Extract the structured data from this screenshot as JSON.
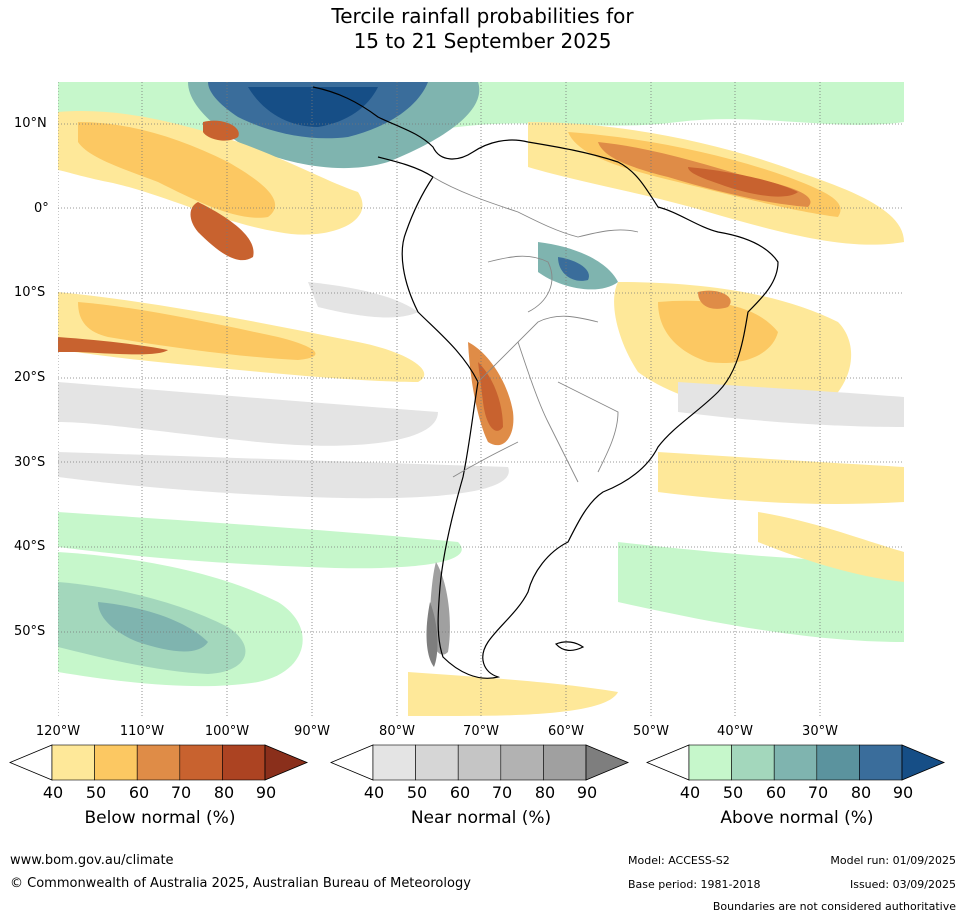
{
  "title": {
    "line1": "Tercile rainfall probabilities for",
    "line2": "15 to 21 September 2025"
  },
  "lat_labels": [
    "10°N",
    "0°",
    "10°S",
    "20°S",
    "30°S",
    "40°S",
    "50°S"
  ],
  "lon_labels": [
    "120°W",
    "110°W",
    "100°W",
    "90°W",
    "80°W",
    "70°W",
    "60°W",
    "50°W",
    "40°W",
    "30°W"
  ],
  "colorbars": [
    {
      "label": "Below normal (%)",
      "ticks": [
        "40",
        "50",
        "60",
        "70",
        "80",
        "90"
      ],
      "colors": [
        "#ffffff",
        "#fee899",
        "#fcc862",
        "#df8c47",
        "#c8622f",
        "#ac4322",
        "#8a2f1b"
      ]
    },
    {
      "label": "Near normal (%)",
      "ticks": [
        "40",
        "50",
        "60",
        "70",
        "80",
        "90"
      ],
      "colors": [
        "#ffffff",
        "#e4e4e4",
        "#d6d6d6",
        "#c5c5c5",
        "#b2b2b2",
        "#a0a0a0",
        "#7e7e7e"
      ]
    },
    {
      "label": "Above normal (%)",
      "ticks": [
        "40",
        "50",
        "60",
        "70",
        "80",
        "90"
      ],
      "colors": [
        "#ffffff",
        "#c6f7cb",
        "#a3d7bc",
        "#7fb4af",
        "#5b939e",
        "#3a6d9b",
        "#164e86"
      ]
    }
  ],
  "footer": {
    "website": "www.bom.gov.au/climate",
    "copyright": "© Commonwealth of Australia 2025, Australian Bureau of Meteorology",
    "model": "Model: ACCESS-S2",
    "base_period": "Base period: 1981-2018",
    "model_run": "Model run: 01/09/2025",
    "issued": "Issued: 03/09/2025",
    "disclaimer": "Boundaries are not considered authoritative"
  }
}
